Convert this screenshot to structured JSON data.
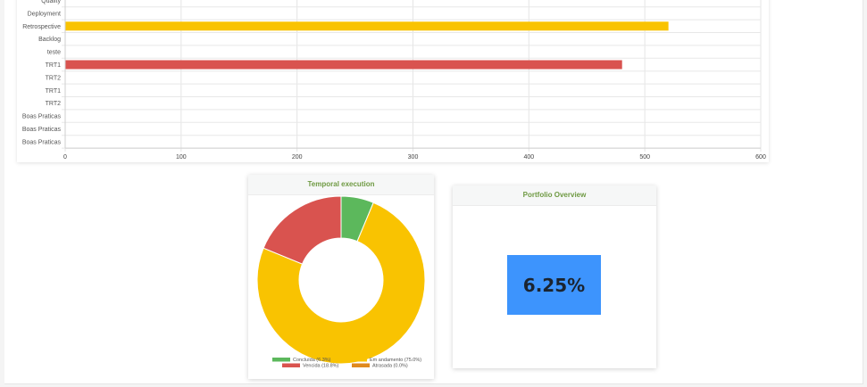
{
  "bar_chart": {
    "chart_data": {
      "type": "bar",
      "orientation": "horizontal",
      "categories": [
        "Quality",
        "Deployment",
        "Retrospective",
        "Backlog",
        "teste",
        "TRT1",
        "TRT2",
        "TRT1",
        "TRT2",
        "Boas Praticas",
        "Boas Praticas",
        "Boas Praticas"
      ],
      "values": [
        0,
        0,
        520,
        0,
        0,
        480,
        0,
        0,
        0,
        0,
        0,
        0
      ],
      "bar_colors": [
        "#f9c301",
        "#f9c301",
        "#f9c301",
        "#f9c301",
        "#f9c301",
        "#d9534f",
        "#f9c301",
        "#f9c301",
        "#f9c301",
        "#f9c301",
        "#f9c301",
        "#f9c301"
      ],
      "xlim": [
        0,
        600
      ],
      "x_ticks": [
        "0",
        "100",
        "200",
        "300",
        "400",
        "500",
        "600"
      ],
      "grid": true
    }
  },
  "donut_panel": {
    "title": "Temporal execution",
    "chart_data": {
      "type": "pie",
      "donut": true,
      "series": [
        {
          "name": "Concluída (6.3%)",
          "value": 6.3,
          "color": "#5cb85c"
        },
        {
          "name": "Em andamento (75.0%)",
          "value": 75.0,
          "color": "#f9c301"
        },
        {
          "name": "Vencida (18.8%)",
          "value": 18.8,
          "color": "#d9534f"
        },
        {
          "name": "Atrasada (0.0%)",
          "value": 0.0,
          "color": "#e08a1e"
        }
      ],
      "legend_position": "bottom"
    }
  },
  "overview_panel": {
    "title": "Portfolio Overview",
    "value": "6.25%",
    "box_color": "#3d94fd"
  }
}
